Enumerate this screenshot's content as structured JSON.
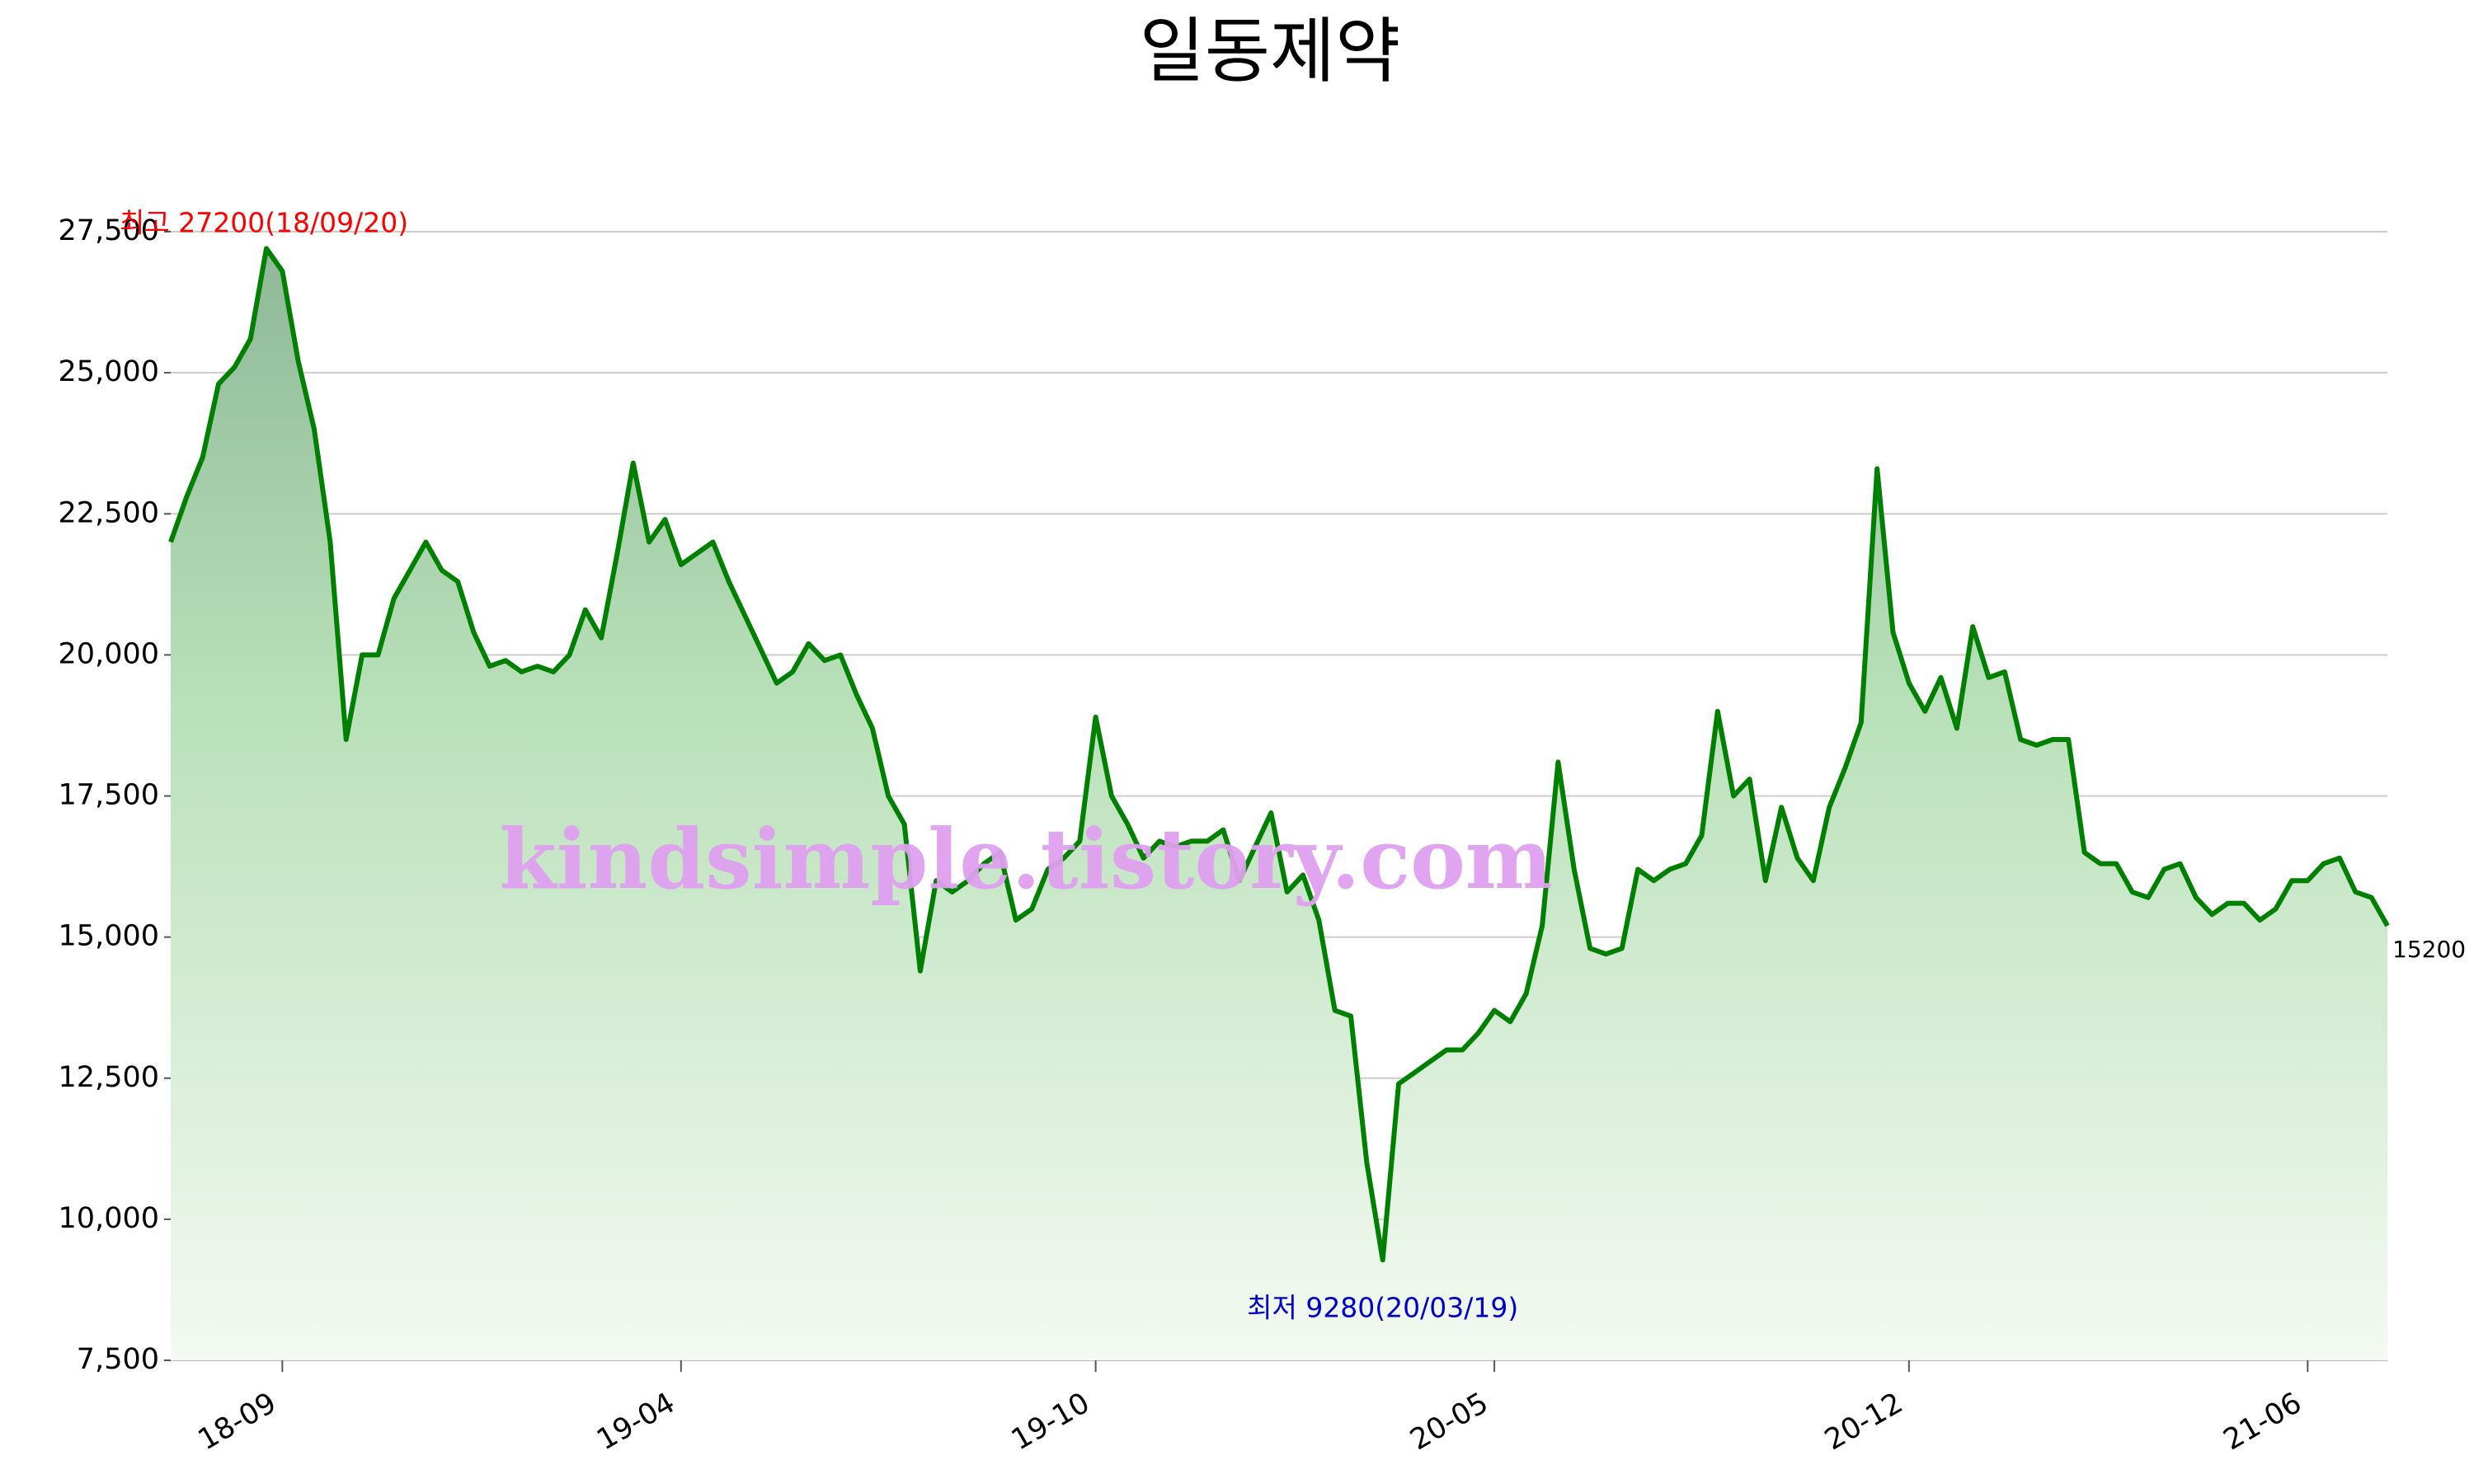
{
  "chart_data": {
    "type": "area-line",
    "title": "일동제약",
    "categories": [
      null,
      null,
      null,
      null,
      null,
      null,
      null,
      "18-09",
      null,
      null,
      null,
      null,
      null,
      null,
      null,
      null,
      null,
      null,
      null,
      null,
      null,
      null,
      null,
      null,
      null,
      null,
      null,
      null,
      null,
      null,
      null,
      null,
      "19-04",
      null,
      null,
      null,
      null,
      null,
      null,
      null,
      null,
      null,
      null,
      null,
      null,
      null,
      null,
      null,
      null,
      null,
      null,
      null,
      null,
      null,
      null,
      null,
      null,
      null,
      "19-10",
      null,
      null,
      null,
      null,
      null,
      null,
      null,
      null,
      null,
      null,
      null,
      null,
      null,
      null,
      null,
      null,
      null,
      null,
      null,
      null,
      null,
      null,
      null,
      null,
      "20-05",
      null,
      null,
      null,
      null,
      null,
      null,
      null,
      null,
      null,
      null,
      null,
      null,
      null,
      null,
      null,
      null,
      null,
      null,
      null,
      null,
      null,
      null,
      null,
      null,
      null,
      "20-12",
      null,
      null,
      null,
      null,
      null,
      null,
      null,
      null,
      null,
      null,
      null,
      null,
      null,
      null,
      null,
      null,
      null,
      null,
      null,
      null,
      null,
      null,
      null,
      null,
      "21-06",
      null,
      null,
      null,
      null,
      null
    ],
    "values": [
      22000,
      22800,
      23500,
      24800,
      25100,
      25600,
      27200,
      26800,
      25200,
      24000,
      22000,
      18500,
      20000,
      20000,
      21000,
      21500,
      22000,
      21500,
      21300,
      20400,
      19800,
      19900,
      19700,
      19800,
      19700,
      20000,
      20800,
      20300,
      21800,
      23400,
      22000,
      22400,
      21600,
      21800,
      22000,
      21300,
      20700,
      20100,
      19500,
      19700,
      20200,
      19900,
      20000,
      19300,
      18700,
      17500,
      17000,
      14400,
      16000,
      15800,
      16000,
      16300,
      16500,
      15300,
      15500,
      16200,
      16400,
      16700,
      18900,
      17500,
      17000,
      16400,
      16700,
      16600,
      16700,
      16700,
      16900,
      16000,
      16600,
      17200,
      15800,
      16100,
      15300,
      13700,
      13600,
      11000,
      9280,
      12400,
      12600,
      12800,
      13000,
      13000,
      13300,
      13700,
      13500,
      14000,
      15200,
      18100,
      16200,
      14800,
      14700,
      14800,
      16200,
      16000,
      16200,
      16300,
      16800,
      19000,
      17500,
      17800,
      16000,
      17300,
      16400,
      16000,
      17300,
      18000,
      18800,
      23300,
      20400,
      19500,
      19000,
      19600,
      18700,
      20500,
      19600,
      19700,
      18500,
      18400,
      18500,
      18500,
      16500,
      16300,
      16300,
      15800,
      15700,
      16200,
      16300,
      15700,
      15400,
      15600,
      15600,
      15300,
      15500,
      16000,
      16000,
      16300,
      16400,
      15800,
      15700,
      15200
    ],
    "color": "#008000",
    "ylim": [
      7500,
      27500
    ],
    "yticks": [
      {
        "value": 7500,
        "label": "7,500"
      },
      {
        "value": 10000,
        "label": "10,000"
      },
      {
        "value": 12500,
        "label": "12,500"
      },
      {
        "value": 15000,
        "label": "15,000"
      },
      {
        "value": 17500,
        "label": "17,500"
      },
      {
        "value": 20000,
        "label": "20,000"
      },
      {
        "value": 22500,
        "label": "22,500"
      },
      {
        "value": 25000,
        "label": "25,000"
      },
      {
        "value": 27500,
        "label": "27,500"
      }
    ],
    "grid": true,
    "annotations": {
      "max": "최고 27200(18/09/20)",
      "min": "최저 9280(20/03/19)"
    },
    "watermark": "kindsimple.tistory.com"
  }
}
